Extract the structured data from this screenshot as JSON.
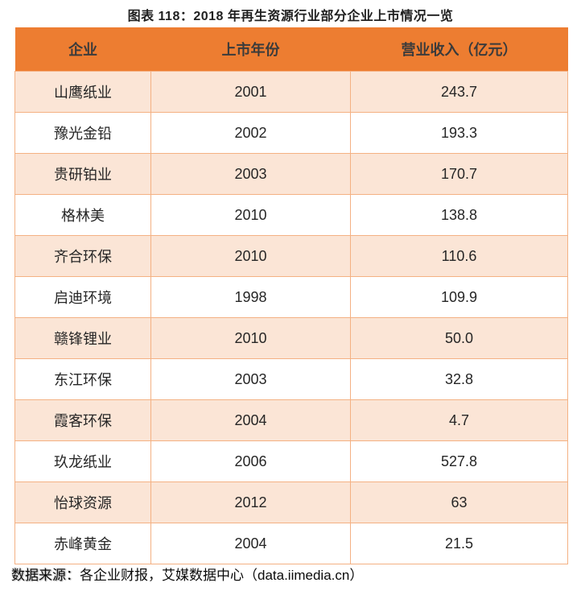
{
  "title": "图表 118：2018 年再生资源行业部分企业上市情况一览",
  "table": {
    "headers": [
      "企业",
      "上市年份",
      "营业收入（亿元）"
    ],
    "rows": [
      {
        "company": "山鹰纸业",
        "year": "2001",
        "revenue": "243.7"
      },
      {
        "company": "豫光金铅",
        "year": "2002",
        "revenue": "193.3"
      },
      {
        "company": "贵研铂业",
        "year": "2003",
        "revenue": "170.7"
      },
      {
        "company": "格林美",
        "year": "2010",
        "revenue": "138.8"
      },
      {
        "company": "齐合环保",
        "year": "2010",
        "revenue": "110.6"
      },
      {
        "company": "启迪环境",
        "year": "1998",
        "revenue": "109.9"
      },
      {
        "company": "赣锋锂业",
        "year": "2010",
        "revenue": "50.0"
      },
      {
        "company": "东江环保",
        "year": "2003",
        "revenue": "32.8"
      },
      {
        "company": "霞客环保",
        "year": "2004",
        "revenue": "4.7"
      },
      {
        "company": "玖龙纸业",
        "year": "2006",
        "revenue": "527.8"
      },
      {
        "company": "怡球资源",
        "year": "2012",
        "revenue": "63"
      },
      {
        "company": "赤峰黄金",
        "year": "2004",
        "revenue": "21.5"
      }
    ]
  },
  "footer": {
    "source_label": "数据来源：",
    "source_text": "各企业财报，艾媒数据中心（data.iimedia.cn）"
  },
  "colors": {
    "header_bg": "#ED7D31",
    "band_bg": "#FBE5D6",
    "grid_border": "#F4B183",
    "header_text": "#3b3b3b",
    "cell_text": "#262626"
  },
  "chart_data": {
    "type": "table",
    "title": "图表 118：2018 年再生资源行业部分企业上市情况一览",
    "columns": [
      "企业",
      "上市年份",
      "营业收入（亿元）"
    ],
    "rows": [
      [
        "山鹰纸业",
        2001,
        243.7
      ],
      [
        "豫光金铅",
        2002,
        193.3
      ],
      [
        "贵研铂业",
        2003,
        170.7
      ],
      [
        "格林美",
        2010,
        138.8
      ],
      [
        "齐合环保",
        2010,
        110.6
      ],
      [
        "启迪环境",
        1998,
        109.9
      ],
      [
        "赣锋锂业",
        2010,
        50.0
      ],
      [
        "东江环保",
        2003,
        32.8
      ],
      [
        "霞客环保",
        2004,
        4.7
      ],
      [
        "玖龙纸业",
        2006,
        527.8
      ],
      [
        "怡球资源",
        2012,
        63
      ],
      [
        "赤峰黄金",
        2004,
        21.5
      ]
    ],
    "source": "各企业财报，艾媒数据中心（data.iimedia.cn）",
    "layout": {
      "striped": true,
      "stripe_start": "odd",
      "grid": true
    }
  }
}
